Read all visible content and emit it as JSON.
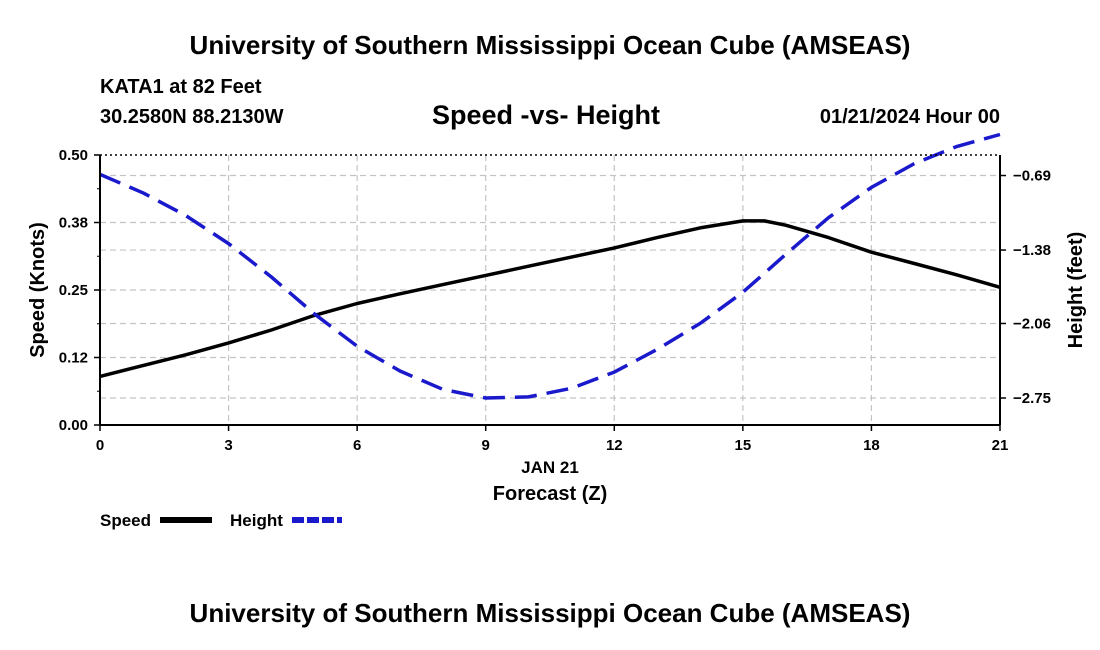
{
  "header": {
    "title": "University of Southern Mississippi Ocean Cube (AMSEAS)",
    "station": "KATA1 at 82 Feet",
    "coords": "30.2580N  88.2130W",
    "subtitle": "Speed -vs- Height",
    "datetime": "01/21/2024 Hour 00"
  },
  "footer": {
    "title": "University of Southern Mississippi Ocean Cube (AMSEAS)"
  },
  "chart_data": {
    "type": "line",
    "title": "Speed -vs- Height",
    "xlabel": "Forecast (Z)",
    "xlabel_date": "JAN 21",
    "ylabel": "Speed (Knots)",
    "y2label": "Height (feet)",
    "xlim": [
      0,
      21
    ],
    "ylim": [
      0,
      0.5
    ],
    "y2lim": [
      -3.0,
      -0.5
    ],
    "x_ticks": [
      0,
      3,
      6,
      9,
      12,
      15,
      18,
      21
    ],
    "x_tick_labels": [
      "0",
      "3",
      "6",
      "9",
      "12",
      "15",
      "18",
      "21"
    ],
    "y_ticks": [
      0,
      0.125,
      0.25,
      0.375,
      0.5
    ],
    "y_tick_labels": [
      "0.00",
      "0.12",
      "0.25",
      "0.38",
      "0.50"
    ],
    "y2_ticks": [
      -0.69,
      -1.38,
      -2.06,
      -2.75
    ],
    "y2_tick_labels": [
      "−0.69",
      "−1.38",
      "−2.06",
      "−2.75"
    ],
    "grid": true,
    "series": [
      {
        "name": "Speed",
        "axis": "left",
        "color": "#000000",
        "dash": "solid",
        "x": [
          0,
          1,
          2,
          3,
          4,
          5,
          6,
          7,
          8,
          9,
          10,
          11,
          12,
          13,
          14,
          15,
          15.5,
          16,
          17,
          18,
          19,
          20,
          21
        ],
        "values": [
          0.09,
          0.11,
          0.13,
          0.152,
          0.176,
          0.203,
          0.225,
          0.243,
          0.26,
          0.277,
          0.294,
          0.311,
          0.328,
          0.347,
          0.365,
          0.378,
          0.378,
          0.37,
          0.347,
          0.32,
          0.299,
          0.278,
          0.255
        ]
      },
      {
        "name": "Height",
        "axis": "right",
        "color": "#1a1acc",
        "dash": "dashed",
        "x": [
          0,
          1,
          2,
          3,
          4,
          5,
          6,
          7,
          8,
          9,
          10,
          11,
          12,
          13,
          14,
          15,
          16,
          17,
          18,
          19,
          20,
          21
        ],
        "values": [
          -0.68,
          -0.85,
          -1.06,
          -1.32,
          -1.63,
          -1.97,
          -2.27,
          -2.5,
          -2.67,
          -2.75,
          -2.74,
          -2.66,
          -2.51,
          -2.3,
          -2.06,
          -1.77,
          -1.42,
          -1.08,
          -0.8,
          -0.58,
          -0.42,
          -0.31
        ]
      }
    ]
  },
  "legend": {
    "items": [
      {
        "label": "Speed",
        "color": "#000000",
        "dash": "solid"
      },
      {
        "label": "Height",
        "color": "#1a1acc",
        "dash": "dashed"
      }
    ]
  }
}
